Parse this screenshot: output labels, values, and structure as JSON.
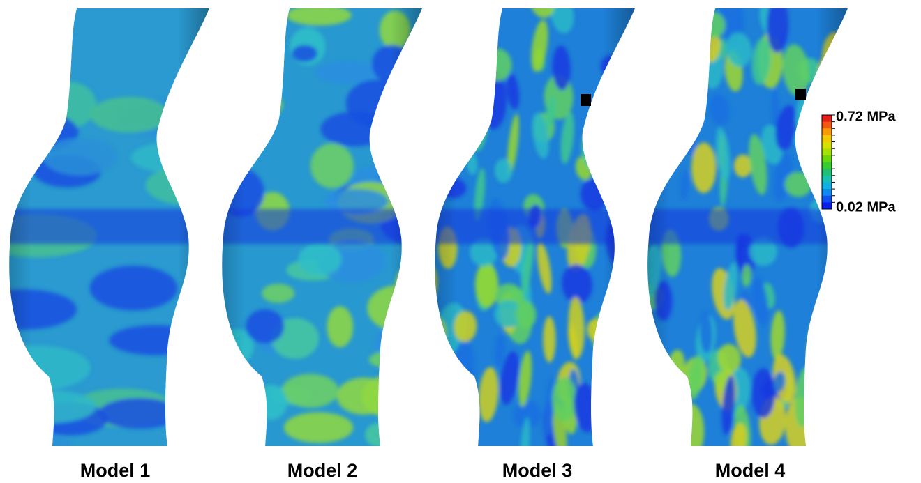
{
  "models": [
    {
      "label": "Model 1"
    },
    {
      "label": "Model 2"
    },
    {
      "label": "Model 3"
    },
    {
      "label": "Model 4"
    }
  ],
  "colorbar": {
    "max_label": "0.72 MPa",
    "min_label": "0.02 MPa"
  }
}
